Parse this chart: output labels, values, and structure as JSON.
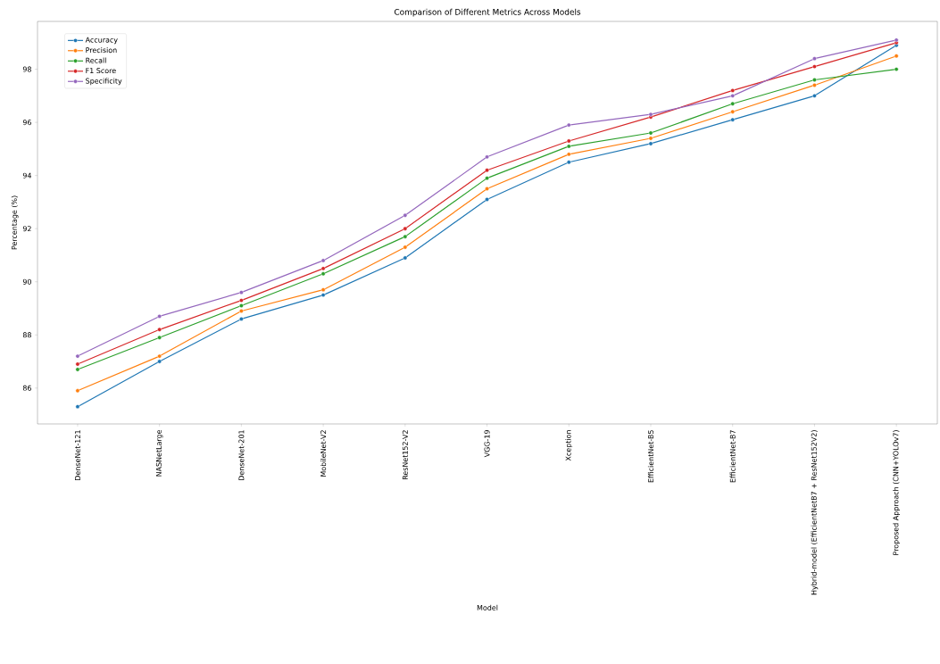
{
  "chart_data": {
    "type": "line",
    "title": "Comparison of Different Metrics Across Models",
    "xlabel": "Model",
    "ylabel": "Percentage (%)",
    "categories": [
      "DenseNet-121",
      "NASNetLarge",
      "DenseNet-201",
      "MobileNet-V2",
      "ResNet152-V2",
      "VGG-19",
      "Xception",
      "EfficientNet-B5",
      "EfficientNet-B7",
      "Hybrid-model (EfficientNetB7 + ResNet152V2)",
      "Proposed Approach (CNN+YOLOv7)"
    ],
    "series": [
      {
        "name": "Accuracy",
        "color": "#1f77b4",
        "values": [
          85.3,
          87.0,
          88.6,
          89.5,
          90.9,
          93.1,
          94.5,
          95.2,
          96.1,
          97.0,
          98.9
        ]
      },
      {
        "name": "Precision",
        "color": "#ff7f0e",
        "values": [
          85.9,
          87.2,
          88.9,
          89.7,
          91.3,
          93.5,
          94.8,
          95.4,
          96.4,
          97.4,
          98.5
        ]
      },
      {
        "name": "Recall",
        "color": "#2ca02c",
        "values": [
          86.7,
          87.9,
          89.1,
          90.3,
          91.7,
          93.9,
          95.1,
          95.6,
          96.7,
          97.6,
          98.0
        ]
      },
      {
        "name": "F1 Score",
        "color": "#d62728",
        "values": [
          86.9,
          88.2,
          89.3,
          90.5,
          92.0,
          94.2,
          95.3,
          96.2,
          97.2,
          98.1,
          99.0
        ]
      },
      {
        "name": "Specificity",
        "color": "#9467bd",
        "values": [
          87.2,
          88.7,
          89.6,
          90.8,
          92.5,
          94.7,
          95.9,
          96.3,
          97.0,
          98.4,
          99.1
        ]
      }
    ],
    "ylim": [
      84.65,
      99.8
    ],
    "yticks": [
      86,
      88,
      90,
      92,
      94,
      96,
      98
    ],
    "grid": false,
    "legend": "top left",
    "marker": "circle",
    "line_style": "solid"
  }
}
